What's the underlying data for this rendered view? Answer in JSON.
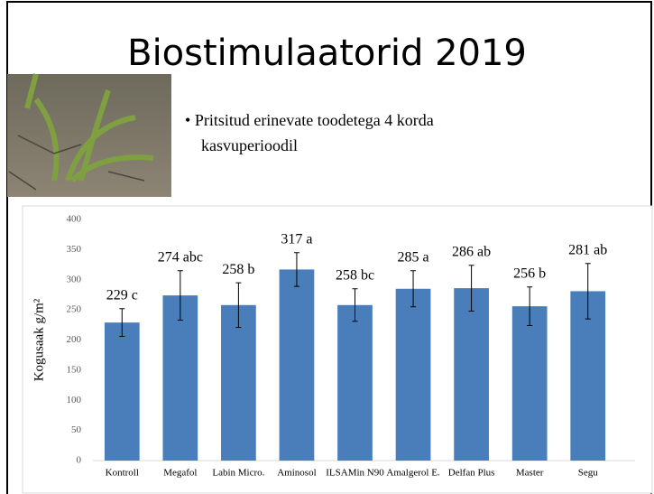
{
  "slide": {
    "title": "Biostimulaatorid 2019",
    "bullet": "Pritsitud erinevate toodetega 4 korda kasvuperioodil"
  },
  "chart_data": {
    "type": "bar",
    "ylabel": "Kogusaak g/m²",
    "categories": [
      "Kontroll",
      "Megafol",
      "Labin Micro.",
      "Aminosol",
      "ILSAMin N90",
      "Amalgerol E.",
      "Delfan Plus",
      "Master",
      "Segu"
    ],
    "values": [
      229,
      274,
      258,
      317,
      258,
      285,
      286,
      256,
      281
    ],
    "value_labels": [
      "229 c",
      "274 abc",
      "258 b",
      "317 a",
      "258 bc",
      "285 a",
      "286 ab",
      "256 b",
      "281 ab"
    ],
    "errors": [
      23,
      41,
      37,
      28,
      27,
      30,
      38,
      32,
      46
    ],
    "color": "#4a7ebb",
    "ylim": [
      0,
      400
    ],
    "yticks": [
      0,
      50,
      100,
      150,
      200,
      250,
      300,
      350,
      400
    ],
    "grid": false
  }
}
